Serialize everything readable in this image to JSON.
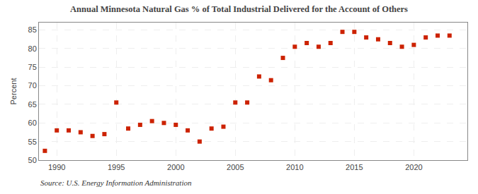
{
  "chart_data": {
    "type": "scatter",
    "title": "Annual Minnesota Natural Gas % of Total Industrial Delivered for the Account of Others",
    "ylabel": "Percent",
    "annotations": [
      "Source: U.S. Energy Information Administration"
    ],
    "x": [
      1989,
      1990,
      1991,
      1992,
      1993,
      1994,
      1995,
      1996,
      1997,
      1998,
      1999,
      2000,
      2001,
      2002,
      2003,
      2004,
      2005,
      2006,
      2007,
      2008,
      2009,
      2010,
      2011,
      2012,
      2013,
      2014,
      2015,
      2016,
      2017,
      2018,
      2019,
      2020,
      2021,
      2022,
      2023
    ],
    "values": [
      52.5,
      58.0,
      58.0,
      57.5,
      56.5,
      57.0,
      65.5,
      58.5,
      59.5,
      60.5,
      60.0,
      59.5,
      58.0,
      55.0,
      58.5,
      59.0,
      65.5,
      65.5,
      72.5,
      71.5,
      77.5,
      80.5,
      81.5,
      80.5,
      81.5,
      84.5,
      84.5,
      83.0,
      82.5,
      81.5,
      80.5,
      81.0,
      83.0,
      83.5,
      83.5
    ],
    "color": "#cc2200",
    "marker": "square",
    "xlim": [
      1988.5,
      2024.5
    ],
    "ylim": [
      50,
      87
    ],
    "xticks": [
      1990,
      1995,
      2000,
      2005,
      2010,
      2015,
      2020
    ],
    "yticks": [
      50,
      55,
      60,
      65,
      70,
      75,
      80,
      85
    ],
    "grid": true
  }
}
